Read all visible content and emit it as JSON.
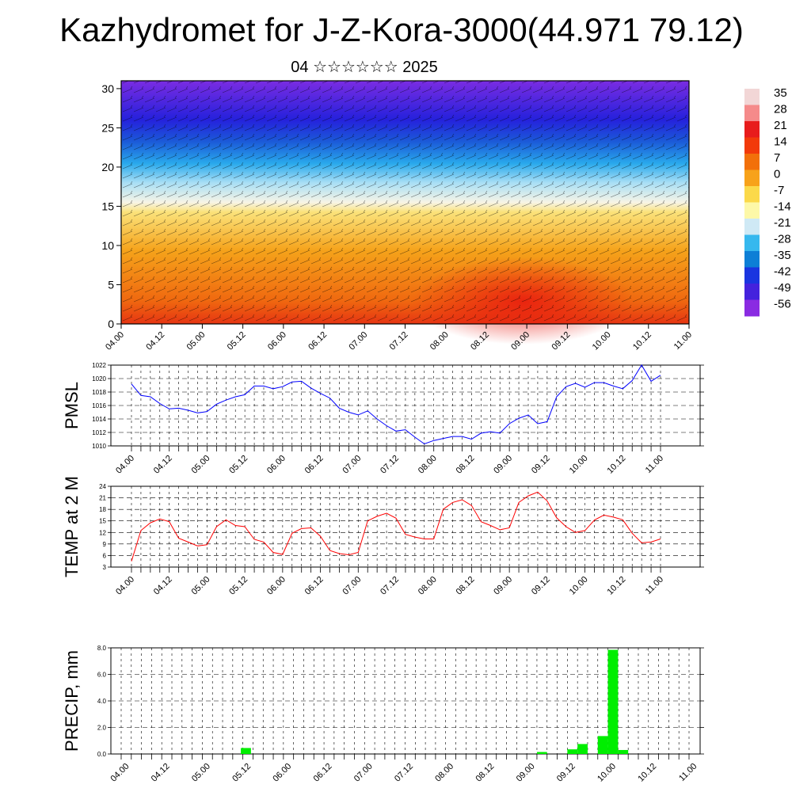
{
  "title": "Kazhydromet for J-Z-Kora-3000(44.971 79.12)",
  "subtitle": "04 ☆☆☆☆☆☆ 2025",
  "colorbar": {
    "labels": [
      "35",
      "28",
      "21",
      "14",
      "7",
      "0",
      "-7",
      "-14",
      "-21",
      "-28",
      "-35",
      "-42",
      "-49",
      "-56"
    ],
    "colors": [
      "#f2d6d6",
      "#f58a8a",
      "#e81c1c",
      "#f23a0a",
      "#f2700a",
      "#f7a21a",
      "#fbd94a",
      "#fdf8a8",
      "#cfe9f5",
      "#36b8ee",
      "#0d7fd6",
      "#1a35e0",
      "#4422dd",
      "#8a2be2"
    ]
  },
  "chart_data": [
    {
      "type": "heatmap",
      "name": "cross-section",
      "x_tick_labels": [
        "04.00",
        "04.12",
        "05.00",
        "05.12",
        "06.00",
        "06.12",
        "07.00",
        "07.12",
        "08.00",
        "08.12",
        "09.00",
        "09.12",
        "10.00",
        "10.12",
        "11.00"
      ],
      "y_tick_labels": [
        "0",
        "5",
        "10",
        "15",
        "20",
        "25",
        "30"
      ],
      "ylim": [
        0,
        31
      ],
      "colorscale_range": [
        -56,
        35
      ]
    },
    {
      "type": "line",
      "ylabel": "PMSL",
      "ylim": [
        1010,
        1022
      ],
      "y_ticks": [
        "1010",
        "1012",
        "1014",
        "1016",
        "1018",
        "1020",
        "1022"
      ],
      "x_tick_labels": [
        "04.00",
        "04.12",
        "05.00",
        "05.12",
        "06.00",
        "06.12",
        "07.00",
        "07.12",
        "08.00",
        "08.12",
        "09.00",
        "09.12",
        "10.00",
        "10.12",
        "11.00"
      ],
      "series": [
        {
          "color": "#0000ff",
          "values": [
            1019.2,
            1017.5,
            1017.3,
            1016.3,
            1015.5,
            1015.6,
            1015.3,
            1014.9,
            1015.1,
            1016.2,
            1016.8,
            1017.3,
            1017.6,
            1018.9,
            1018.9,
            1018.5,
            1018.8,
            1019.5,
            1019.6,
            1018.6,
            1017.8,
            1017.1,
            1015.6,
            1015.0,
            1014.6,
            1015.2,
            1014.0,
            1013.0,
            1012.2,
            1012.4,
            1011.3,
            1010.3,
            1010.8,
            1011.1,
            1011.4,
            1011.4,
            1011.0,
            1011.9,
            1012.1,
            1011.9,
            1013.3,
            1014.1,
            1014.6,
            1013.3,
            1013.6,
            1017.3,
            1018.8,
            1019.3,
            1018.7,
            1019.4,
            1019.4,
            1018.9,
            1018.5,
            1019.7,
            1022.0,
            1019.6,
            1020.5
          ]
        }
      ]
    },
    {
      "type": "line",
      "ylabel": "TEMP at 2 M",
      "ylim": [
        3,
        24
      ],
      "y_ticks": [
        "3",
        "6",
        "9",
        "12",
        "15",
        "18",
        "21",
        "24"
      ],
      "x_tick_labels": [
        "04.00",
        "04.12",
        "05.00",
        "05.12",
        "06.00",
        "06.12",
        "07.00",
        "07.12",
        "08.00",
        "08.12",
        "09.00",
        "09.12",
        "10.00",
        "10.12",
        "11.00"
      ],
      "series": [
        {
          "color": "#ff0000",
          "values": [
            4.5,
            12.5,
            14.5,
            15.5,
            14.8,
            10.5,
            9.5,
            8.5,
            8.8,
            13.5,
            15.3,
            13.8,
            13.5,
            10.2,
            9.5,
            6.8,
            6.3,
            11.8,
            13.0,
            13.2,
            11.0,
            7.3,
            6.5,
            6.2,
            6.8,
            15.0,
            16.2,
            17.0,
            15.7,
            11.5,
            10.8,
            10.3,
            10.3,
            18.0,
            19.8,
            20.5,
            19.0,
            14.8,
            13.8,
            12.7,
            13.2,
            19.8,
            21.5,
            22.5,
            20.2,
            15.8,
            13.5,
            12.0,
            12.5,
            15.2,
            16.5,
            16.0,
            15.3,
            11.8,
            9.3,
            9.5,
            10.3
          ]
        }
      ]
    },
    {
      "type": "bar",
      "ylabel": "PRECIP, mm",
      "ylim": [
        0,
        8
      ],
      "y_ticks": [
        "0.0",
        "2.0",
        "4.0",
        "6.0",
        "8.0"
      ],
      "x_tick_labels": [
        "04.00",
        "04.12",
        "05.00",
        "05.12",
        "06.00",
        "06.12",
        "07.00",
        "07.12",
        "08.00",
        "08.12",
        "09.00",
        "09.12",
        "10.00",
        "10.12",
        "11.00"
      ],
      "bar_color": "#00ee00",
      "bars": [
        {
          "x": 12.3,
          "value": 0.45
        },
        {
          "x": 41.5,
          "value": 0.15
        },
        {
          "x": 44.5,
          "value": 0.35
        },
        {
          "x": 45.5,
          "value": 0.75
        },
        {
          "x": 47.5,
          "value": 1.35
        },
        {
          "x": 48.5,
          "value": 7.85
        },
        {
          "x": 49.5,
          "value": 0.3
        }
      ]
    }
  ]
}
